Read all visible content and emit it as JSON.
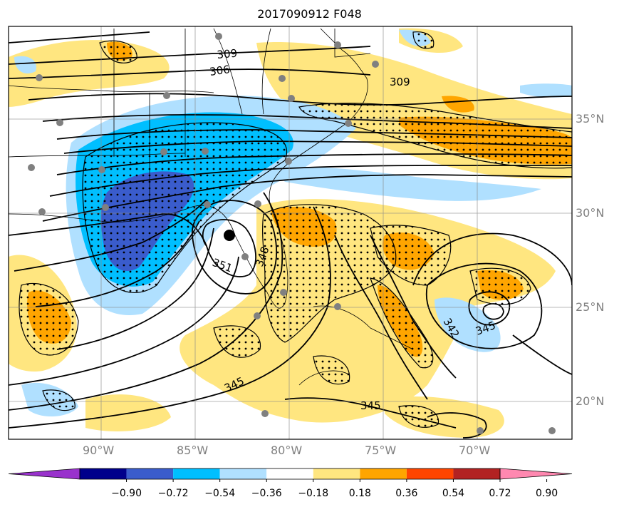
{
  "title": "2017090912 F048",
  "lat_labels": [
    "35°N",
    "30°N",
    "25°N",
    "20°N"
  ],
  "lon_labels": [
    "90°W",
    "85°W",
    "80°W",
    "75°W",
    "70°W"
  ],
  "contour_labels": [
    "309",
    "306",
    "309",
    "351",
    "345",
    "345",
    "345",
    "348",
    "342"
  ],
  "colorbar": {
    "ticks": [
      "−0.90",
      "−0.72",
      "−0.54",
      "−0.36",
      "−0.18",
      "0.18",
      "0.36",
      "0.54",
      "0.72",
      "0.90"
    ],
    "colors": [
      "#9932cc",
      "#00008b",
      "#3a5ccc",
      "#00bfff",
      "#b0e0ff",
      "#ffffff",
      "#ffe680",
      "#ffa500",
      "#ff4500",
      "#b22222",
      "#ff88b0"
    ]
  }
}
